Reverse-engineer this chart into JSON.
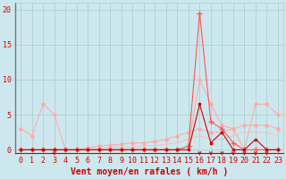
{
  "bg_color": "#cce8ee",
  "grid_color": "#aacccc",
  "line_color_dark": "#cc0000",
  "xlabel": "Vent moyen/en rafales ( km/h )",
  "ylim": [
    -0.5,
    21
  ],
  "xlim": [
    -0.5,
    23.5
  ],
  "yticks": [
    0,
    5,
    10,
    15,
    20
  ],
  "xticks": [
    0,
    1,
    2,
    3,
    4,
    5,
    6,
    7,
    8,
    9,
    10,
    11,
    12,
    13,
    14,
    15,
    16,
    17,
    18,
    19,
    20,
    21,
    22,
    23
  ],
  "series": [
    {
      "x": [
        0,
        1,
        2,
        3,
        4,
        5,
        6,
        7,
        8,
        9,
        10,
        11,
        12,
        13,
        14,
        15,
        16,
        17,
        18,
        19,
        20,
        21,
        22,
        23
      ],
      "y": [
        0,
        0,
        0,
        0,
        0,
        0,
        0,
        0,
        0,
        0,
        0,
        0,
        0,
        0,
        0,
        0,
        6.5,
        1.0,
        2.5,
        0,
        0,
        1.5,
        0,
        0
      ],
      "color": "#cc0000",
      "lw": 0.8,
      "marker": "s",
      "ms": 2.0,
      "zorder": 5
    },
    {
      "x": [
        0,
        1,
        2,
        3,
        4,
        5,
        6,
        7,
        8,
        9,
        10,
        11,
        12,
        13,
        14,
        15,
        16,
        17,
        18,
        19,
        20,
        21,
        22,
        23
      ],
      "y": [
        0,
        0,
        0,
        0,
        0,
        0,
        0,
        0,
        0,
        0,
        0,
        0,
        0,
        0,
        0,
        0.5,
        19.5,
        4.0,
        3.0,
        1.0,
        0,
        0,
        0,
        0
      ],
      "color": "#ff5555",
      "lw": 0.8,
      "marker": "+",
      "ms": 4.0,
      "zorder": 4
    },
    {
      "x": [
        0,
        1,
        2,
        3,
        4,
        5,
        6,
        7,
        8,
        9,
        10,
        11,
        12,
        13,
        14,
        15,
        16,
        17,
        18,
        19,
        20,
        21,
        22,
        23
      ],
      "y": [
        3.0,
        2.0,
        6.5,
        5.0,
        0,
        0,
        0,
        0,
        0,
        0,
        0,
        0,
        0,
        0,
        0,
        0.5,
        10.0,
        6.5,
        3.5,
        3.0,
        0,
        6.5,
        6.5,
        5.0
      ],
      "color": "#ffaaaa",
      "lw": 0.8,
      "marker": "D",
      "ms": 2.0,
      "zorder": 3
    },
    {
      "x": [
        0,
        1,
        2,
        3,
        4,
        5,
        6,
        7,
        8,
        9,
        10,
        11,
        12,
        13,
        14,
        15,
        16,
        17,
        18,
        19,
        20,
        21,
        22,
        23
      ],
      "y": [
        0,
        0,
        0,
        0,
        0,
        0,
        0.3,
        0.5,
        0.7,
        0.8,
        1.0,
        1.0,
        1.2,
        1.5,
        2.0,
        2.5,
        3.0,
        2.5,
        2.5,
        3.0,
        3.5,
        3.5,
        3.5,
        3.0
      ],
      "color": "#ffaaaa",
      "lw": 0.8,
      "marker": "D",
      "ms": 2.0,
      "zorder": 2
    },
    {
      "x": [
        0,
        1,
        2,
        3,
        4,
        5,
        6,
        7,
        8,
        9,
        10,
        11,
        12,
        13,
        14,
        15,
        16,
        17,
        18,
        19,
        20,
        21,
        22,
        23
      ],
      "y": [
        0,
        0,
        0,
        0,
        0,
        0,
        0.1,
        0.2,
        0.3,
        0.4,
        0.4,
        0.5,
        0.6,
        0.8,
        1.0,
        1.5,
        2.0,
        1.5,
        1.5,
        2.0,
        2.5,
        2.5,
        2.5,
        2.0
      ],
      "color": "#ffbbbb",
      "lw": 0.7,
      "marker": null,
      "ms": 0,
      "zorder": 1
    }
  ],
  "arrow_down_x": [
    16,
    17,
    18,
    19,
    20,
    21,
    22
  ],
  "arrow_down2_x": [
    3
  ],
  "xlabel_fontsize": 7,
  "tick_fontsize": 6,
  "ylabel_fontsize": 7
}
